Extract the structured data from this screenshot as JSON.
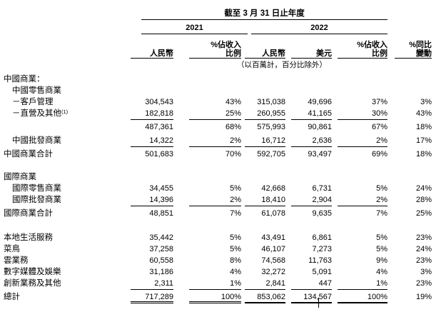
{
  "table": {
    "title": "截至 3 月 31 日止年度",
    "years": {
      "y2021": "2021",
      "y2022": "2022"
    },
    "col_headers": {
      "rmb_2021": "人民幣",
      "pct_l1": "%佔收入",
      "pct_l2": "比例",
      "rmb_2022": "人民幣",
      "usd_2022": "美元",
      "yoy_l1": "%同比",
      "yoy_l2": "變動"
    },
    "unit_note": "（以百萬計，百分比除外）",
    "rows": [
      {
        "label": "中國商業：",
        "indent": 0
      },
      {
        "label": "中國零售商業",
        "indent": 1
      },
      {
        "label": "－客戶管理",
        "indent": 1,
        "c1": "304,543",
        "c2": "43%",
        "c3": "315,038",
        "c4": "49,696",
        "c5": "37%",
        "c6": "3%"
      },
      {
        "label": "－直營及其他",
        "sup": "(1)",
        "indent": 1,
        "c1": "182,818",
        "c2": "25%",
        "c3": "260,955",
        "c4": "41,165",
        "c5": "30%",
        "c6": "43%",
        "line": "single"
      },
      {
        "label": "",
        "indent": 0,
        "c1": "487,361",
        "c2": "68%",
        "c3": "575,993",
        "c4": "90,861",
        "c5": "67%",
        "c6": "18%"
      },
      {
        "label": "中國批發商業",
        "indent": 1,
        "c1": "14,322",
        "c2": "2%",
        "c3": "16,712",
        "c4": "2,636",
        "c5": "2%",
        "c6": "17%",
        "line": "single"
      },
      {
        "label": "中國商業合計",
        "indent": 0,
        "c1": "501,683",
        "c2": "70%",
        "c3": "592,705",
        "c4": "93,497",
        "c5": "69%",
        "c6": "18%"
      },
      {
        "label": "國際商業",
        "indent": 0
      },
      {
        "label": "國際零售商業",
        "indent": 1,
        "c1": "34,455",
        "c2": "5%",
        "c3": "42,668",
        "c4": "6,731",
        "c5": "5%",
        "c6": "24%"
      },
      {
        "label": "國際批發商業",
        "indent": 1,
        "c1": "14,396",
        "c2": "2%",
        "c3": "18,410",
        "c4": "2,904",
        "c5": "2%",
        "c6": "28%",
        "line": "single"
      },
      {
        "label": "國際商業合計",
        "indent": 0,
        "c1": "48,851",
        "c2": "7%",
        "c3": "61,078",
        "c4": "9,635",
        "c5": "7%",
        "c6": "25%"
      },
      {
        "label": "本地生活服務",
        "indent": 0,
        "c1": "35,442",
        "c2": "5%",
        "c3": "43,491",
        "c4": "6,861",
        "c5": "5%",
        "c6": "23%"
      },
      {
        "label": "菜鳥",
        "indent": 0,
        "c1": "37,258",
        "c2": "5%",
        "c3": "46,107",
        "c4": "7,273",
        "c5": "5%",
        "c6": "24%"
      },
      {
        "label": "雲業務",
        "indent": 0,
        "c1": "60,558",
        "c2": "8%",
        "c3": "74,568",
        "c4": "11,763",
        "c5": "9%",
        "c6": "23%"
      },
      {
        "label": "數字媒體及娛樂",
        "indent": 0,
        "c1": "31,186",
        "c2": "4%",
        "c3": "32,272",
        "c4": "5,091",
        "c5": "4%",
        "c6": "3%"
      },
      {
        "label": "創新業務及其他",
        "indent": 0,
        "c1": "2,311",
        "c2": "1%",
        "c3": "2,841",
        "c4": "447",
        "c5": "1%",
        "c6": "23%",
        "line": "single"
      },
      {
        "label": "總計",
        "indent": 0,
        "c1": "717,289",
        "c2": "100%",
        "c3": "853,062",
        "c4": "134,567",
        "c5": "100%",
        "c6": "19%",
        "line": "total"
      }
    ]
  }
}
